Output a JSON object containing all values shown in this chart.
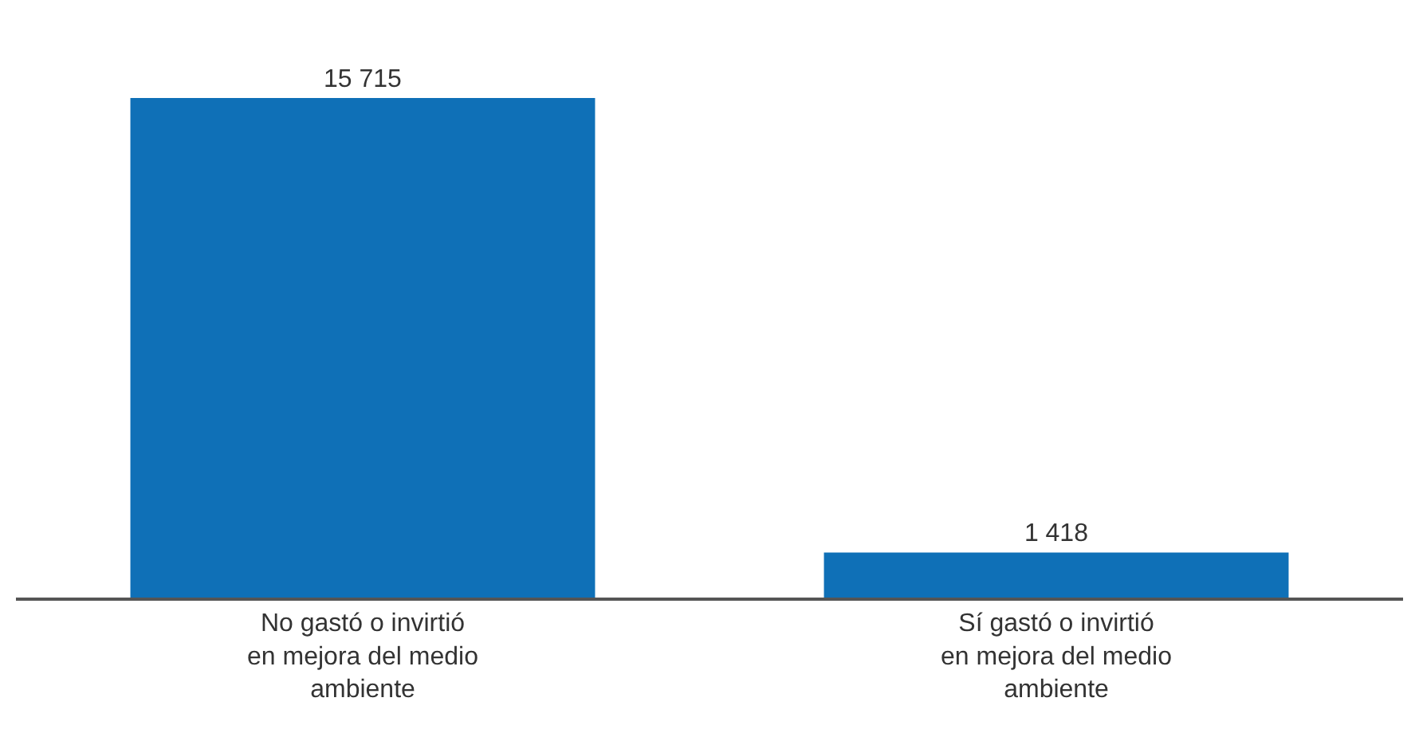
{
  "chart_data": {
    "type": "bar",
    "categories": [
      "No gastó o invirtió en mejora del medio ambiente",
      "Sí gastó o invirtió en mejora del medio ambiente"
    ],
    "values": [
      15715,
      1418
    ],
    "value_labels": [
      "15 715",
      "1 418"
    ],
    "color": "#0f70b7",
    "grid": false
  }
}
